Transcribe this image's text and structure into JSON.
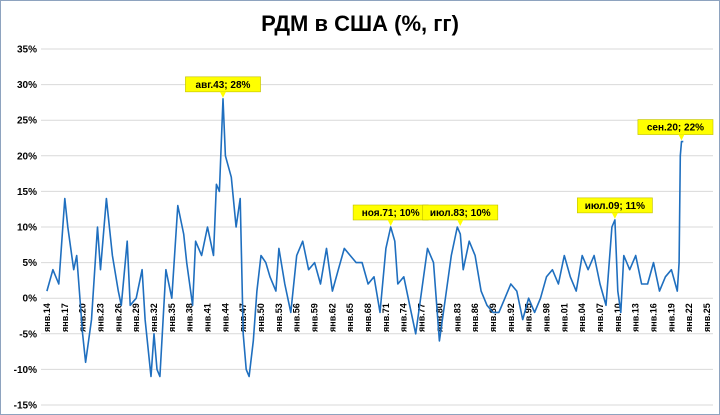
{
  "chart_data": {
    "type": "line",
    "title": "РДМ в США (%, гг)",
    "xlabel": "",
    "ylabel": "",
    "ylim": [
      -15,
      35
    ],
    "y_ticks": [
      "35%",
      "30%",
      "25%",
      "20%",
      "15%",
      "10%",
      "5%",
      "0%",
      "-5%",
      "-10%",
      "-15%"
    ],
    "x_ticks": [
      "янв.14",
      "янв.17",
      "янв.20",
      "янв.23",
      "янв.26",
      "янв.29",
      "янв.32",
      "янв.35",
      "янв.38",
      "янв.41",
      "янв.44",
      "янв.47",
      "янв.50",
      "янв.53",
      "янв.56",
      "янв.59",
      "янв.62",
      "янв.65",
      "янв.68",
      "янв.71",
      "янв.74",
      "янв.77",
      "янв.80",
      "янв.83",
      "янв.86",
      "янв.89",
      "янв.92",
      "янв.95",
      "янв.98",
      "янв.01",
      "янв.04",
      "янв.07",
      "янв.10",
      "янв.13",
      "янв.16",
      "янв.19",
      "янв.22",
      "янв.25"
    ],
    "grid": "horizontal",
    "line_color": "#1f6fbf",
    "annotation_color": "#ffff00",
    "series": [
      {
        "x": [
          1914.0,
          1915.0,
          1916.0,
          1917.0,
          1917.5,
          1918.5,
          1919.0,
          1920.0,
          1920.5,
          1921.5,
          1922.5,
          1923.0,
          1924.0,
          1925.0,
          1926.0,
          1926.5,
          1927.5,
          1928.0,
          1929.0,
          1930.0,
          1930.5,
          1931.5,
          1932.0,
          1932.5,
          1933.0,
          1934.0,
          1935.0,
          1936.0,
          1937.0,
          1937.5,
          1938.5,
          1939.0,
          1940.0,
          1941.0,
          1942.0,
          1942.5,
          1943.0,
          1943.6,
          1944.0,
          1945.0,
          1945.8,
          1946.5,
          1947.0,
          1947.5,
          1948.0,
          1948.7,
          1949.3,
          1950.0,
          1950.8,
          1951.5,
          1952.5,
          1953.0,
          1954.0,
          1955.0,
          1956.0,
          1957.0,
          1958.0,
          1959.0,
          1960.0,
          1961.0,
          1962.0,
          1963.0,
          1964.0,
          1965.0,
          1966.0,
          1967.0,
          1968.0,
          1969.0,
          1970.0,
          1971.0,
          1971.8,
          1972.5,
          1973.0,
          1974.0,
          1975.0,
          1976.0,
          1977.0,
          1978.0,
          1979.0,
          1980.0,
          1981.0,
          1982.0,
          1983.0,
          1983.5,
          1984.0,
          1985.0,
          1986.0,
          1987.0,
          1988.0,
          1989.0,
          1990.0,
          1991.0,
          1992.0,
          1993.0,
          1994.0,
          1995.0,
          1996.0,
          1997.0,
          1998.0,
          1999.0,
          2000.0,
          2001.0,
          2002.0,
          2003.0,
          2004.0,
          2005.0,
          2006.0,
          2007.0,
          2008.0,
          2009.0,
          2009.5,
          2010.0,
          2010.5,
          2011.0,
          2012.0,
          2013.0,
          2014.0,
          2015.0,
          2016.0,
          2017.0,
          2018.0,
          2019.0,
          2020.0,
          2020.3,
          2020.5,
          2020.7,
          2021.0
        ],
        "values": [
          1,
          4,
          2,
          14,
          10,
          4,
          6,
          -5,
          -9,
          -3,
          10,
          4,
          14,
          6,
          1,
          -1,
          8,
          -1,
          0,
          4,
          -3,
          -11,
          -5,
          -10,
          -11,
          4,
          0,
          13,
          9,
          5,
          -1,
          8,
          6,
          10,
          6,
          16,
          15,
          28,
          20,
          17,
          10,
          14,
          -5,
          -10,
          -11,
          -6,
          1,
          6,
          5,
          3,
          1,
          7,
          2,
          -2,
          6,
          8,
          4,
          5,
          2,
          7,
          1,
          4,
          7,
          6,
          5,
          5,
          2,
          3,
          -2,
          7,
          10,
          8,
          2,
          3,
          -1,
          -5,
          1,
          7,
          5,
          -6,
          0,
          6,
          10,
          9,
          4,
          8,
          6,
          1,
          -1,
          -2,
          -2,
          0,
          2,
          1,
          -3,
          0,
          -2,
          0,
          3,
          4,
          2,
          6,
          3,
          1,
          6,
          4,
          6,
          2,
          -1,
          10,
          11,
          1,
          -2,
          6,
          4,
          6,
          2,
          2,
          5,
          1,
          3,
          4,
          1,
          5,
          20,
          22,
          22
        ]
      }
    ],
    "annotations": [
      {
        "x": 1943.6,
        "y": 28,
        "text": "авг.43; 28%"
      },
      {
        "x": 1971.8,
        "y": 10,
        "text": "ноя.71; 10%"
      },
      {
        "x": 1983.5,
        "y": 10,
        "text": "июл.83; 10%"
      },
      {
        "x": 2009.5,
        "y": 11,
        "text": "июл.09; 11%"
      },
      {
        "x": 2020.7,
        "y": 22,
        "text": "сен.20; 22%"
      }
    ]
  }
}
